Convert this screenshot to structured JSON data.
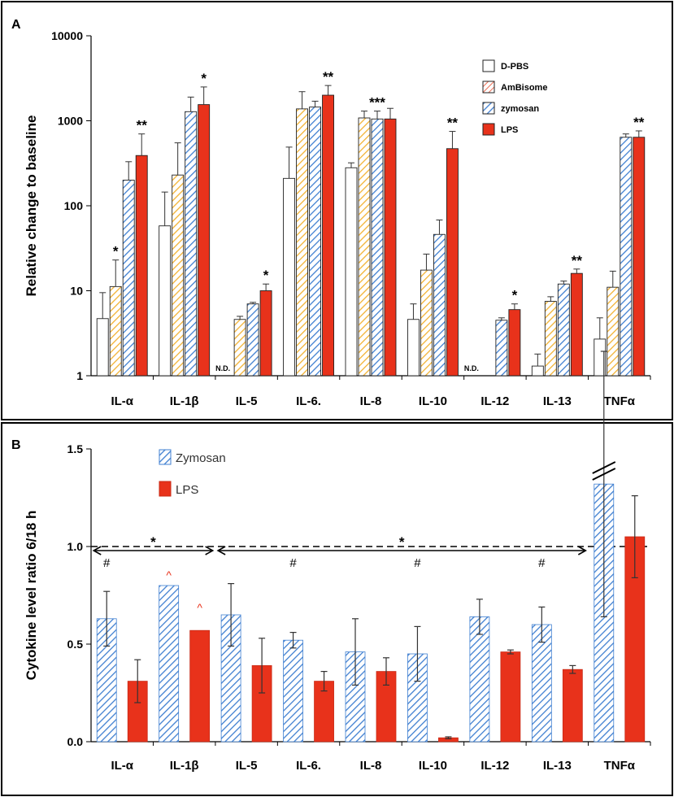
{
  "chart_data": [
    {
      "panel_label": "A",
      "type": "bar",
      "yscale": "log",
      "ylabel": "Relative change to baseline",
      "ylim": [
        1,
        10000
      ],
      "yticks": [
        "1",
        "10",
        "100",
        "1000",
        "10000"
      ],
      "categories": [
        "IL-α",
        "IL-1β",
        "IL-5",
        "IL-6.",
        "IL-8",
        "IL-10",
        "IL-12",
        "IL-13",
        "TNFα"
      ],
      "legend": [
        "D-PBS",
        "AmBisome",
        "zymosan",
        "LPS"
      ],
      "nd_label": "N.D.",
      "series": [
        {
          "name": "D-PBS",
          "style": "white",
          "values": [
            4.7,
            58,
            null,
            210,
            280,
            4.6,
            null,
            1.3,
            2.7
          ],
          "err_upper": [
            9.5,
            145,
            null,
            490,
            320,
            7,
            null,
            1.8,
            4.8
          ]
        },
        {
          "name": "AmBisome",
          "style": "orange-hatch",
          "values": [
            11.2,
            230,
            4.6,
            1380,
            1080,
            17.5,
            null,
            7.5,
            11
          ],
          "err_upper": [
            23,
            550,
            5,
            2200,
            1300,
            27,
            null,
            8.5,
            17
          ]
        },
        {
          "name": "zymosan",
          "style": "blue-hatch",
          "values": [
            200,
            1280,
            7,
            1450,
            1050,
            46,
            4.5,
            12,
            640
          ],
          "err_upper": [
            330,
            1900,
            7.3,
            1700,
            1300,
            68,
            4.8,
            13,
            700
          ]
        },
        {
          "name": "LPS",
          "style": "red",
          "values": [
            390,
            1550,
            10,
            2000,
            1050,
            470,
            6,
            16,
            640
          ],
          "err_upper": [
            700,
            2500,
            12,
            2600,
            1400,
            750,
            7,
            18,
            760
          ]
        }
      ],
      "annotations": [
        {
          "category": 0,
          "series": 1,
          "text": "*"
        },
        {
          "category": 0,
          "series": 3,
          "text": "**"
        },
        {
          "category": 1,
          "series": 3,
          "text": "*"
        },
        {
          "category": 2,
          "series": 3,
          "text": "*"
        },
        {
          "category": 3,
          "series": 3,
          "text": "**"
        },
        {
          "category": 4,
          "series": 2,
          "text": "***"
        },
        {
          "category": 5,
          "series": 3,
          "text": "**"
        },
        {
          "category": 6,
          "series": 3,
          "text": "*"
        },
        {
          "category": 7,
          "series": 3,
          "text": "**"
        },
        {
          "category": 8,
          "series": 3,
          "text": "**"
        }
      ]
    },
    {
      "panel_label": "B",
      "type": "bar",
      "yscale": "linear",
      "ylabel": "Cytokine level ratio 6/18 h",
      "ylim": [
        0,
        1.5
      ],
      "yticks": [
        "0.0",
        "0.5",
        "1.0",
        "1.5"
      ],
      "reference_line": 1.0,
      "categories": [
        "IL-α",
        "IL-1β",
        "IL-5",
        "IL-6.",
        "IL-8",
        "IL-10",
        "IL-12",
        "IL-13",
        "TNFα"
      ],
      "legend": [
        "Zymosan",
        "LPS"
      ],
      "series": [
        {
          "name": "Zymosan",
          "style": "blue-hatch",
          "values": [
            0.63,
            0.8,
            0.65,
            0.52,
            0.46,
            0.45,
            0.64,
            0.6,
            1.32
          ],
          "err": [
            0.14,
            0.0,
            0.16,
            0.04,
            0.17,
            0.14,
            0.09,
            0.09,
            0.68
          ]
        },
        {
          "name": "LPS",
          "style": "red",
          "values": [
            0.31,
            0.57,
            0.39,
            0.31,
            0.36,
            0.02,
            0.46,
            0.37,
            1.05
          ],
          "err": [
            0.11,
            0.0,
            0.14,
            0.05,
            0.07,
            0.005,
            0.01,
            0.02,
            0.21
          ]
        }
      ],
      "brackets": [
        {
          "from_category": 0,
          "to_category": 1,
          "text": "*"
        },
        {
          "from_category": 2,
          "to_category": 7,
          "text": "*"
        }
      ],
      "hash_marks": {
        "text": "#",
        "categories": [
          0,
          3,
          5,
          7
        ]
      },
      "caret_marks": {
        "text": "^",
        "category": 1
      }
    }
  ]
}
